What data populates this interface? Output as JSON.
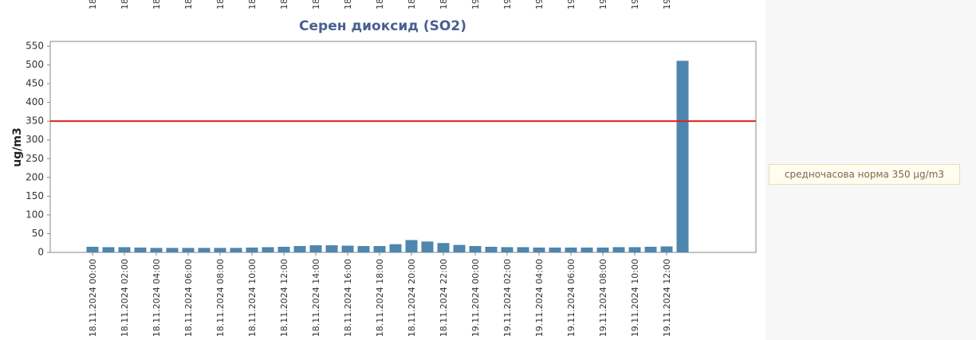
{
  "chart_data": {
    "type": "bar",
    "title": "Серен диоксид (SO2)",
    "y_label": "ug/m3",
    "top_labels": [
      "18.",
      "18.1",
      "18.",
      "18.",
      "18.",
      "18.",
      "18.",
      "18.",
      "18.",
      "18.",
      "18.",
      "18.",
      "19.",
      "19.",
      "19.",
      "19.",
      "19.",
      "19.",
      "19."
    ],
    "categories": [
      "18.11.2024 00:00",
      null,
      "18.11.2024 02:00",
      null,
      "18.11.2024 04:00",
      null,
      "18.11.2024 06:00",
      null,
      "18.11.2024 08:00",
      null,
      "18.11.2024 10:00",
      null,
      "18.11.2024 12:00",
      null,
      "18.11.2024 14:00",
      null,
      "18.11.2024 16:00",
      null,
      "18.11.2024 18:00",
      null,
      "18.11.2024 20:00",
      null,
      "18.11.2024 22:00",
      null,
      "19.11.2024 00:00",
      null,
      "19.11.2024 02:00",
      null,
      "19.11.2024 04:00",
      null,
      "19.11.2024 06:00",
      null,
      "19.11.2024 08:00",
      null,
      "19.11.2024 10:00",
      null,
      "19.11.2024 12:00",
      null
    ],
    "values": [
      15,
      14,
      14,
      13,
      12,
      12,
      12,
      12,
      12,
      12,
      13,
      14,
      15,
      17,
      19,
      19,
      18,
      17,
      17,
      22,
      33,
      29,
      25,
      20,
      17,
      15,
      14,
      14,
      13,
      13,
      13,
      13,
      13,
      14,
      14,
      15,
      16,
      511
    ],
    "color": "#4e86ad",
    "ylim": [
      0,
      550
    ],
    "yticks": [
      0,
      50,
      100,
      150,
      200,
      250,
      300,
      350,
      400,
      450,
      500,
      550
    ],
    "threshold": 350,
    "threshold_color": "#e02020",
    "annotation": "средночасова норма 350 µg/m3"
  }
}
